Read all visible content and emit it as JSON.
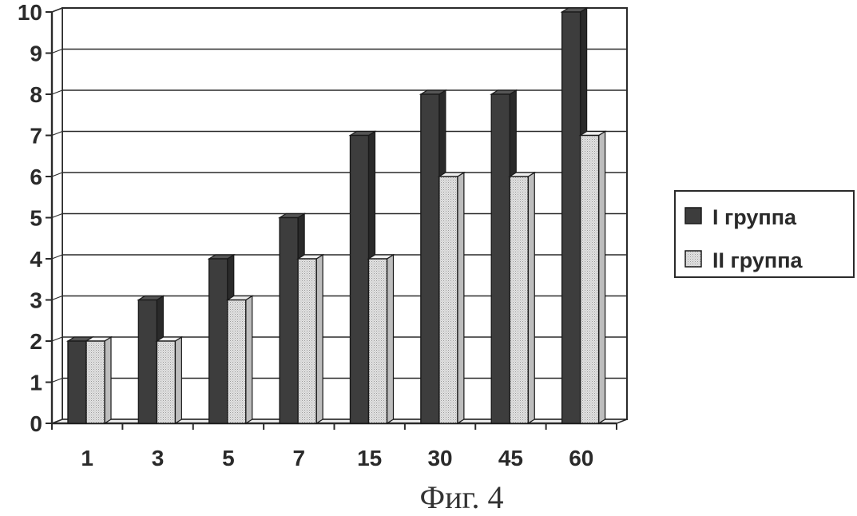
{
  "chart_data": {
    "type": "bar",
    "categories": [
      "1",
      "3",
      "5",
      "7",
      "15",
      "30",
      "45",
      "60"
    ],
    "series": [
      {
        "name": "I группа",
        "values": [
          2,
          3,
          4,
          5,
          7,
          8,
          8,
          10
        ],
        "color": "#3d3d3d"
      },
      {
        "name": "II группа",
        "values": [
          2,
          2,
          3,
          4,
          4,
          6,
          6,
          7
        ],
        "color": "#d6d6d6"
      }
    ],
    "y_ticks": [
      "0",
      "1",
      "2",
      "3",
      "4",
      "5",
      "6",
      "7",
      "8",
      "9",
      "10"
    ],
    "ylim": [
      0,
      10
    ],
    "grid": true,
    "legend_position": "right",
    "style": "3d-bar"
  },
  "caption": "Фиг. 4"
}
